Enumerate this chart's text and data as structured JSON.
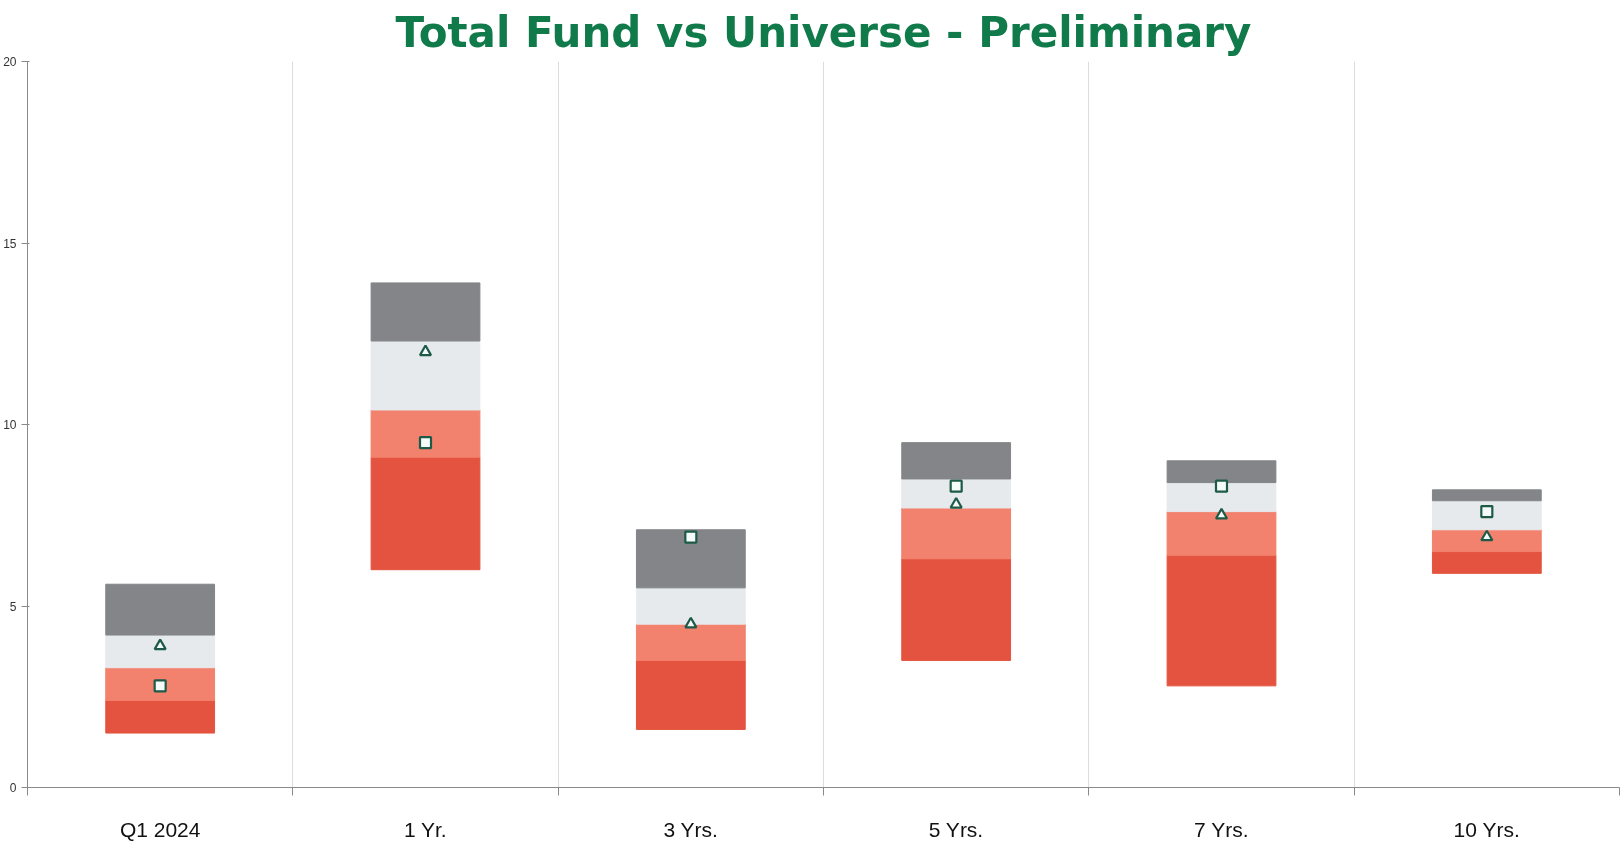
{
  "chart_data": {
    "type": "bar",
    "title": "Total Fund vs Universe - Preliminary",
    "categories": [
      "Q1 2024",
      "1 Yr.",
      "3 Yrs.",
      "5 Yrs.",
      "7 Yrs.",
      "10 Yrs."
    ],
    "series": [
      {
        "color": "#e4533f",
        "base": [
          1.5,
          6.0,
          1.6,
          3.5,
          2.8,
          5.9
        ],
        "values": [
          0.9,
          3.1,
          1.9,
          2.8,
          3.6,
          0.6
        ]
      },
      {
        "color": "#f2816d",
        "base": [
          2.4,
          9.1,
          3.5,
          6.3,
          6.4,
          6.5
        ],
        "values": [
          0.9,
          1.3,
          1.0,
          1.4,
          1.2,
          0.6
        ]
      },
      {
        "color": "#e6eaec",
        "base": [
          3.3,
          10.4,
          4.5,
          7.7,
          7.6,
          7.1
        ],
        "values": [
          0.9,
          1.9,
          1.0,
          0.8,
          0.8,
          0.8
        ]
      },
      {
        "color": "#838588",
        "base": [
          4.2,
          12.3,
          5.5,
          8.5,
          8.4,
          7.9
        ],
        "values": [
          1.4,
          1.6,
          1.6,
          1.0,
          0.6,
          0.3
        ]
      },
      {
        "type": "scatter",
        "marker": "triangle",
        "color": "#1d5a48",
        "x": [
          "Q1 2024",
          "1 Yr.",
          "3 Yrs.",
          "5 Yrs.",
          "7 Yrs.",
          "10 Yrs."
        ],
        "values": [
          3.9,
          12.0,
          4.5,
          7.8,
          7.5,
          6.9
        ]
      },
      {
        "type": "scatter",
        "marker": "square",
        "color": "#1d5a48",
        "x": [
          "Q1 2024",
          "1 Yr.",
          "3 Yrs.",
          "5 Yrs.",
          "7 Yrs.",
          "10 Yrs."
        ],
        "values": [
          2.8,
          9.5,
          6.9,
          8.3,
          8.3,
          7.6
        ]
      }
    ],
    "ylim": [
      0,
      20
    ],
    "yticks": [
      0,
      5,
      10,
      15,
      20
    ],
    "grid": "x"
  }
}
